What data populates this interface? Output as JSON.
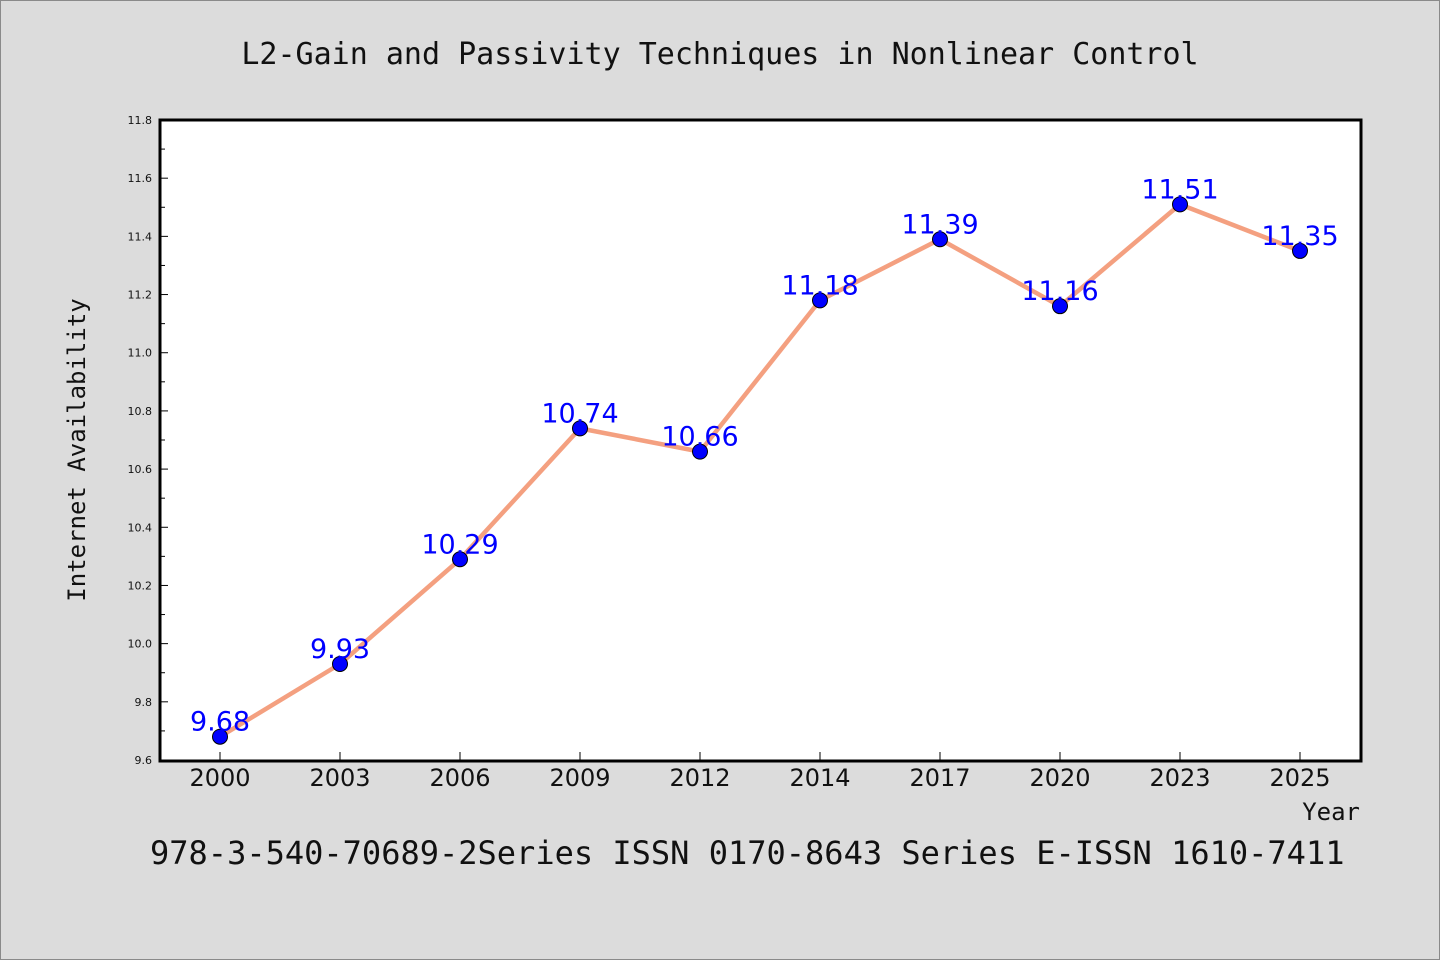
{
  "chart_data": {
    "type": "line",
    "title": "L2-Gain and Passivity Techniques in Nonlinear Control",
    "footer": "978-3-540-70689-2Series ISSN 0170-8643 Series E-ISSN 1610-7411",
    "xlabel": "Year",
    "ylabel": "Internet Availability",
    "categories": [
      "2000",
      "2003",
      "2006",
      "2009",
      "2012",
      "2014",
      "2017",
      "2020",
      "2023",
      "2025"
    ],
    "series": [
      {
        "values": [
          9.68,
          9.93,
          10.29,
          10.74,
          10.66,
          11.18,
          11.39,
          11.16,
          11.51,
          11.35
        ]
      }
    ],
    "data_labels": [
      "9.68",
      "9.93",
      "10.29",
      "10.74",
      "10.66",
      "11.18",
      "11.39",
      "11.16",
      "11.51",
      "11.35"
    ],
    "ylim": [
      9.6,
      11.8
    ],
    "yticks": [
      "9.6",
      "9.8",
      "10.0",
      "10.2",
      "10.4",
      "10.6",
      "10.8",
      "11.0",
      "11.2",
      "11.4",
      "11.6",
      "11.8"
    ],
    "grid": false,
    "line_color": "#f4a080",
    "marker_color": "#0000ff",
    "label_color": "#0000ff"
  }
}
